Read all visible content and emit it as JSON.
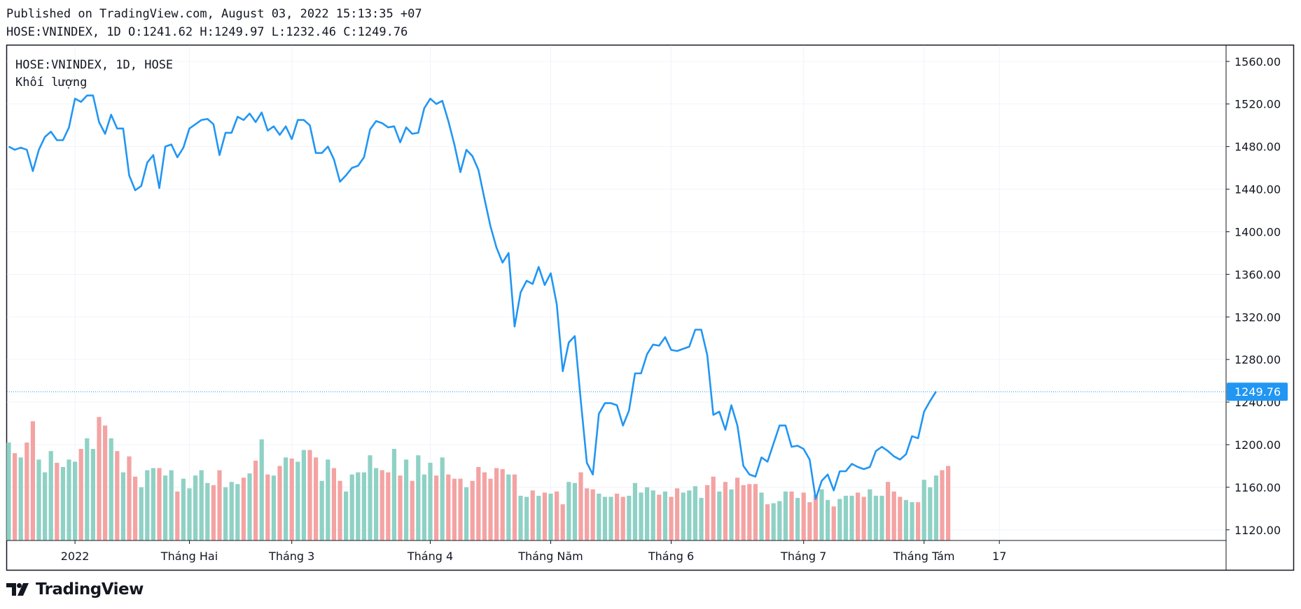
{
  "header": {
    "published": "Published on TradingView.com, August 03, 2022 15:13:35 +07",
    "symbol": "HOSE:VNINDEX, 1D",
    "ohlc": {
      "o_label": "O:",
      "open": "1241.62",
      "h_label": "H:",
      "high": "1249.97",
      "l_label": "L:",
      "low": "1232.46",
      "c_label": "C:",
      "close": "1249.76"
    }
  },
  "legend": {
    "series_title": "HOSE:VNINDEX, 1D, HOSE",
    "volume_title": "Khối lượng"
  },
  "brand": {
    "name": "TradingView"
  },
  "colors": {
    "line": "#2196f3",
    "volume_up": "#8fd1c5",
    "volume_down": "#f4a3a3",
    "price_tag": "#2196f3",
    "grid": "#f0f3fa",
    "axis_text": "#131722"
  },
  "chart_data": {
    "type": "line",
    "series": [
      {
        "values": [
          1480,
          1477,
          1479,
          1477,
          1457,
          1477,
          1489,
          1494,
          1486,
          1486,
          1498,
          1525,
          1522,
          1528,
          1528,
          1503,
          1492,
          1510,
          1497,
          1497,
          1453,
          1439,
          1443,
          1465,
          1472,
          1441,
          1480,
          1482,
          1470,
          1479,
          1497,
          1501,
          1505,
          1506,
          1501,
          1472,
          1493,
          1493,
          1508,
          1505,
          1511,
          1503,
          1512,
          1495,
          1499,
          1491,
          1499,
          1487,
          1505,
          1505,
          1500,
          1474,
          1474,
          1480,
          1468,
          1447,
          1453,
          1460,
          1462,
          1470,
          1496,
          1504,
          1502,
          1498,
          1499,
          1484,
          1498,
          1492,
          1493,
          1516,
          1525,
          1520,
          1523,
          1504,
          1482,
          1456,
          1477,
          1471,
          1458,
          1431,
          1405,
          1385,
          1371,
          1380,
          1311,
          1343,
          1354,
          1351,
          1367,
          1350,
          1361,
          1332,
          1269,
          1296,
          1302,
          1241,
          1183,
          1172,
          1229,
          1239,
          1239,
          1237,
          1218,
          1232,
          1267,
          1267,
          1285,
          1294,
          1293,
          1301,
          1289,
          1288,
          1290,
          1292,
          1308,
          1308,
          1284,
          1228,
          1231,
          1214,
          1237,
          1218,
          1180,
          1172,
          1170,
          1188,
          1184,
          1201,
          1218,
          1218,
          1198,
          1199,
          1196,
          1186,
          1149,
          1166,
          1172,
          1157,
          1175,
          1175,
          1182,
          1179,
          1177,
          1179,
          1194,
          1198,
          1194,
          1189,
          1186,
          1191,
          1208,
          1206,
          1231,
          1241,
          1250
        ]
      },
      {
        "name": "Khối lượng",
        "values": [
          1202,
          1192,
          1188,
          1202,
          1222,
          1186,
          1174,
          1194,
          1183,
          1179,
          1186,
          1184,
          1196,
          1206,
          1196,
          1226,
          1218,
          1206,
          1194,
          1174,
          1189,
          1170,
          1160,
          1176,
          1178,
          1178,
          1171,
          1176,
          1156,
          1168,
          1159,
          1171,
          1176,
          1164,
          1162,
          1176,
          1160,
          1165,
          1163,
          1169,
          1173,
          1185,
          1205,
          1172,
          1171,
          1180,
          1188,
          1187,
          1184,
          1195,
          1195,
          1188,
          1166,
          1186,
          1178,
          1166,
          1156,
          1172,
          1174,
          1174,
          1190,
          1178,
          1176,
          1174,
          1196,
          1171,
          1186,
          1166,
          1190,
          1172,
          1183,
          1171,
          1188,
          1172,
          1168,
          1168,
          1160,
          1166,
          1179,
          1174,
          1168,
          1178,
          1177,
          1172,
          1172,
          1152,
          1151,
          1157,
          1152,
          1155,
          1154,
          1156,
          1144,
          1165,
          1164,
          1174,
          1159,
          1158,
          1154,
          1151,
          1151,
          1154,
          1151,
          1152,
          1164,
          1155,
          1160,
          1157,
          1153,
          1156,
          1151,
          1159,
          1155,
          1157,
          1161,
          1150,
          1162,
          1170,
          1156,
          1165,
          1158,
          1169,
          1162,
          1163,
          1163,
          1155,
          1144,
          1145,
          1147,
          1156,
          1156,
          1150,
          1155,
          1146,
          1153,
          1158,
          1148,
          1142,
          1149,
          1152,
          1152,
          1155,
          1151,
          1158,
          1152,
          1152,
          1165,
          1156,
          1151,
          1148,
          1146,
          1146,
          1167,
          1160,
          1171,
          1176,
          1180
        ]
      }
    ],
    "y_ticks": [
      "1560.00",
      "1520.00",
      "1480.00",
      "1440.00",
      "1400.00",
      "1360.00",
      "1320.00",
      "1280.00",
      "1240.00",
      "1200.00",
      "1160.00",
      "1120.00"
    ],
    "ylim": [
      1110,
      1575
    ],
    "x_ticks": [
      {
        "label": "2022",
        "index": 11
      },
      {
        "label": "Tháng Hai",
        "index": 30
      },
      {
        "label": "Tháng 3",
        "index": 47
      },
      {
        "label": "Tháng 4",
        "index": 70
      },
      {
        "label": "Tháng Năm",
        "index": 90
      },
      {
        "label": "Tháng 6",
        "index": 110
      },
      {
        "label": "Tháng 7",
        "index": 132
      },
      {
        "label": "Tháng Tám",
        "index": 152
      },
      {
        "label": "17",
        "index": 164.5
      }
    ],
    "last_value_label": "1249.76",
    "last_value": 1249.76,
    "grid": true
  }
}
